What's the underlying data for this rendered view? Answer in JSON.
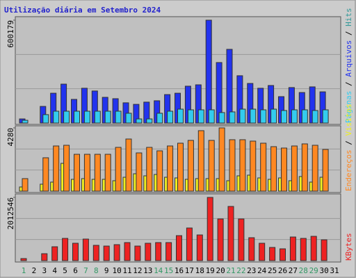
{
  "title": "Utilização diária em Setembro 2024",
  "legend_separator": " / ",
  "categories": [
    "1",
    "2",
    "3",
    "4",
    "5",
    "6",
    "7",
    "8",
    "9",
    "10",
    "11",
    "12",
    "13",
    "14",
    "15",
    "16",
    "17",
    "18",
    "19",
    "20",
    "21",
    "22",
    "23",
    "24",
    "25",
    "26",
    "27",
    "28",
    "29",
    "30",
    "31"
  ],
  "weekend": [
    true,
    false,
    false,
    false,
    false,
    false,
    true,
    true,
    false,
    false,
    false,
    false,
    false,
    true,
    true,
    false,
    false,
    false,
    false,
    false,
    true,
    true,
    false,
    false,
    false,
    false,
    false,
    true,
    true,
    false,
    false
  ],
  "weekend_color": "#339966",
  "chart_data": [
    {
      "type": "bar",
      "ylim": [
        0,
        600179
      ],
      "yticks": [
        600179
      ],
      "grid": true,
      "series": [
        {
          "name": "Arquivos",
          "color": "#2233ee",
          "values": [
            24000,
            0,
            97000,
            174000,
            227000,
            138000,
            203000,
            187000,
            150000,
            142000,
            118000,
            109000,
            122000,
            130000,
            166000,
            174000,
            215000,
            223000,
            600179,
            353000,
            430000,
            276000,
            231000,
            203000,
            219000,
            154000,
            207000,
            178000,
            211000,
            182000,
            0
          ]
        },
        {
          "name": "Páginas",
          "color": "#33ccee",
          "values": [
            16000,
            0,
            49000,
            69000,
            69000,
            69000,
            69000,
            69000,
            69000,
            69000,
            57000,
            24000,
            24000,
            57000,
            69000,
            81000,
            77000,
            77000,
            77000,
            61000,
            65000,
            81000,
            81000,
            77000,
            81000,
            73000,
            77000,
            77000,
            73000,
            77000,
            0
          ]
        }
      ],
      "extra_legend": {
        "name": "Hits",
        "color": "#339999"
      }
    },
    {
      "type": "bar",
      "ylim": [
        0,
        4280
      ],
      "yticks": [
        4280
      ],
      "grid": true,
      "series": [
        {
          "name": "Visitas",
          "color": "#eeee22",
          "values": [
            282,
            0,
            470,
            611,
            1881,
            800,
            847,
            800,
            800,
            705,
            940,
            1176,
            1035,
            1129,
            940,
            894,
            800,
            847,
            847,
            847,
            705,
            1035,
            1082,
            894,
            800,
            894,
            705,
            988,
            611,
            940,
            0
          ]
        },
        {
          "name": "Endereços",
          "color": "#ff8822",
          "values": [
            847,
            0,
            2258,
            3057,
            3104,
            2493,
            2493,
            2493,
            2493,
            2963,
            3527,
            2587,
            2963,
            2728,
            3057,
            3245,
            3434,
            4092,
            3434,
            4280,
            3480,
            3480,
            3386,
            3245,
            3010,
            2916,
            3057,
            3198,
            3104,
            2822,
            0
          ]
        }
      ]
    },
    {
      "type": "bar",
      "ylim": [
        0,
        2012546
      ],
      "yticks": [
        2012546
      ],
      "grid": true,
      "series": [
        {
          "name": "KBytes",
          "color": "#ee2222",
          "values": [
            66000,
            0,
            221000,
            442000,
            708000,
            553000,
            686000,
            487000,
            464000,
            509000,
            575000,
            464000,
            553000,
            575000,
            575000,
            796000,
            1039000,
            818000,
            2012546,
            1327000,
            1725000,
            1327000,
            730000,
            553000,
            420000,
            376000,
            752000,
            708000,
            774000,
            663000,
            0
          ]
        }
      ]
    }
  ]
}
